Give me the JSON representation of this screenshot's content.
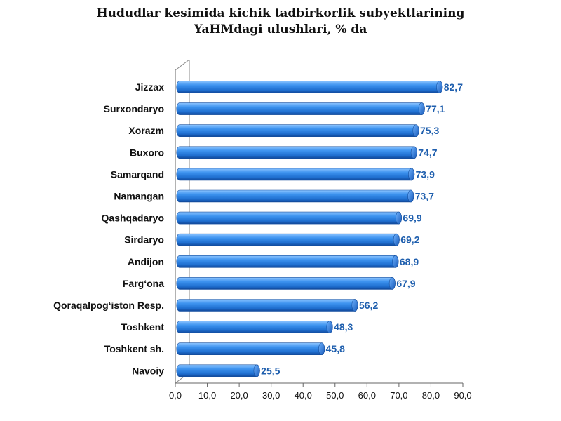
{
  "chart_data": {
    "type": "bar",
    "orientation": "horizontal",
    "title_lines": [
      "Hududlar kesimida kichik tadbirkorlik subyektlarining",
      "YaHMdagi ulushlari, % da"
    ],
    "categories": [
      "Jizzax",
      "Surxondaryo",
      "Xorazm",
      "Buxoro",
      "Samarqand",
      "Namangan",
      "Qashqadaryo",
      "Sirdaryo",
      "Andijon",
      "Farg‘ona",
      "Qoraqalpog‘iston Resp.",
      "Toshkent",
      "Toshkent sh.",
      "Navoiy"
    ],
    "values": [
      82.7,
      77.1,
      75.3,
      74.7,
      73.9,
      73.7,
      69.9,
      69.2,
      68.9,
      67.9,
      56.2,
      48.3,
      45.8,
      25.5
    ],
    "value_labels": [
      "82,7",
      "77,1",
      "75,3",
      "74,7",
      "73,9",
      "73,7",
      "69,9",
      "69,2",
      "68,9",
      "67,9",
      "56,2",
      "48,3",
      "45,8",
      "25,5"
    ],
    "xlim": [
      0,
      90
    ],
    "xticks": [
      0,
      10,
      20,
      30,
      40,
      50,
      60,
      70,
      80,
      90
    ],
    "xtick_labels": [
      "0,0",
      "10,0",
      "20,0",
      "30,0",
      "40,0",
      "50,0",
      "60,0",
      "70,0",
      "80,0",
      "90,0"
    ],
    "grid": false,
    "legend": "none",
    "bar_color": "#2f86e8",
    "label_color": "#1f5fae"
  }
}
